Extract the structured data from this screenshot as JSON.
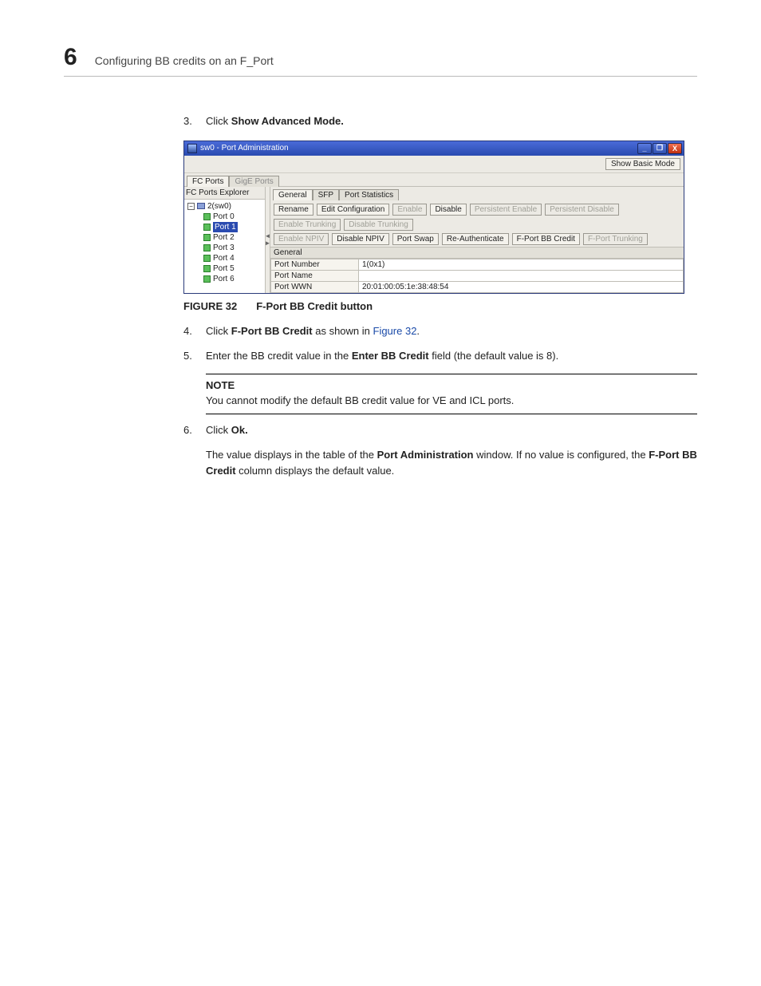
{
  "header": {
    "chapter_number": "6",
    "chapter_title": "Configuring BB credits on an F_Port"
  },
  "steps": {
    "s3": {
      "num": "3.",
      "pre": "Click ",
      "bold": "Show Advanced Mode."
    },
    "s4": {
      "num": "4.",
      "pre": "Click ",
      "bold": "F-Port BB Credit",
      "mid": " as shown in ",
      "link": "Figure 32",
      "post": "."
    },
    "s5": {
      "num": "5.",
      "pre": "Enter the BB credit value in the ",
      "bold": "Enter BB Credit",
      "post": " field (the default value is 8)."
    },
    "s6": {
      "num": "6.",
      "pre": "Click ",
      "bold": "Ok."
    },
    "s6_sub": {
      "pre": "The value displays in the table of the ",
      "b1": "Port Administration",
      "mid": " window. If no value is configured, the ",
      "b2": "F-Port BB Credit",
      "post": " column displays the default value."
    }
  },
  "figure": {
    "label": "FIGURE 32",
    "caption": "F-Port BB Credit button"
  },
  "note": {
    "head": "NOTE",
    "body": "You cannot modify the default BB credit value for VE and ICL ports."
  },
  "shot": {
    "title": "sw0 - Port Administration",
    "win_buttons": {
      "min": "_",
      "max": "❐",
      "close": "X"
    },
    "mode_btn": "Show Basic Mode",
    "port_type_tabs": {
      "fc": "FC Ports",
      "gige": "GigE Ports"
    },
    "tree": {
      "header": "FC Ports Explorer",
      "root_toggle": "−",
      "root": "2(sw0)",
      "ports": [
        "Port 0",
        "Port 1",
        "Port 2",
        "Port 3",
        "Port 4",
        "Port 5",
        "Port 6"
      ],
      "selected_index": 1
    },
    "subtabs": {
      "general": "General",
      "sfp": "SFP",
      "stats": "Port Statistics"
    },
    "buttons_row1": {
      "rename": "Rename",
      "editcfg": "Edit Configuration",
      "enable": "Enable",
      "disable": "Disable",
      "p_enable": "Persistent Enable",
      "p_disable": "Persistent Disable",
      "en_trunk": "Enable Trunking",
      "dis_trunk": "Disable Trunking"
    },
    "buttons_row2": {
      "en_npiv": "Enable NPIV",
      "dis_npiv": "Disable NPIV",
      "port_swap": "Port Swap",
      "reauth": "Re-Authenticate",
      "fport_bb": "F-Port BB Credit",
      "fport_trunk": "F-Port Trunking"
    },
    "section": "General",
    "kv": {
      "k1": "Port Number",
      "v1": "1(0x1)",
      "k2": "Port Name",
      "v2": "",
      "k3": "Port WWN",
      "v3": "20:01:00:05:1e:38:48:54"
    }
  }
}
